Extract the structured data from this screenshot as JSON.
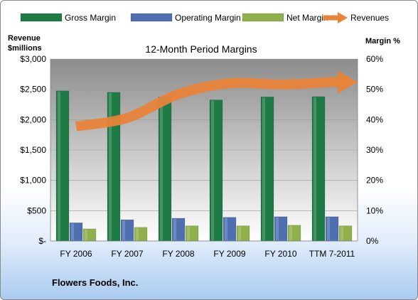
{
  "chart_data": {
    "type": "bar",
    "title": "12-Month Period Margins",
    "categories": [
      "FY 2006",
      "FY 2007",
      "FY 2008",
      "FY 2009",
      "FY 2010",
      "TTM 7-2011"
    ],
    "left_axis": {
      "label_line1": "Revenue",
      "label_line2": "$millions",
      "ylim": [
        0,
        3000
      ],
      "ticks": [
        0,
        500,
        1000,
        1500,
        2000,
        2500,
        3000
      ],
      "tick_labels": [
        "$-",
        "$500",
        "$1,000",
        "$1,500",
        "$2,000",
        "$2,500",
        "$3,000"
      ]
    },
    "right_axis": {
      "label": "Margin %",
      "ylim": [
        0,
        60
      ],
      "ticks": [
        0,
        10,
        20,
        30,
        40,
        50,
        60
      ],
      "tick_labels": [
        "0%",
        "10%",
        "20%",
        "30%",
        "40%",
        "50%",
        "60%"
      ]
    },
    "series": [
      {
        "name": "Gross Margin",
        "type": "bar",
        "axis": "right",
        "color": "#1e7b45",
        "values": [
          49.5,
          49.0,
          47.5,
          46.5,
          47.5,
          47.6
        ]
      },
      {
        "name": "Operating Margin",
        "type": "bar",
        "axis": "right",
        "color": "#4f6fb0",
        "values": [
          6.0,
          7.0,
          7.5,
          7.8,
          8.0,
          8.0
        ]
      },
      {
        "name": "Net Margin",
        "type": "bar",
        "axis": "right",
        "color": "#8fb04a",
        "values": [
          4.0,
          4.5,
          5.0,
          5.0,
          5.2,
          5.0
        ]
      },
      {
        "name": "Revenues",
        "type": "line",
        "axis": "left",
        "color": "#e8833a",
        "values": [
          1890,
          2030,
          2420,
          2600,
          2580,
          2620
        ]
      }
    ],
    "grid": true,
    "legend_position": "top"
  },
  "footer": {
    "company": "Flowers Foods, Inc."
  }
}
